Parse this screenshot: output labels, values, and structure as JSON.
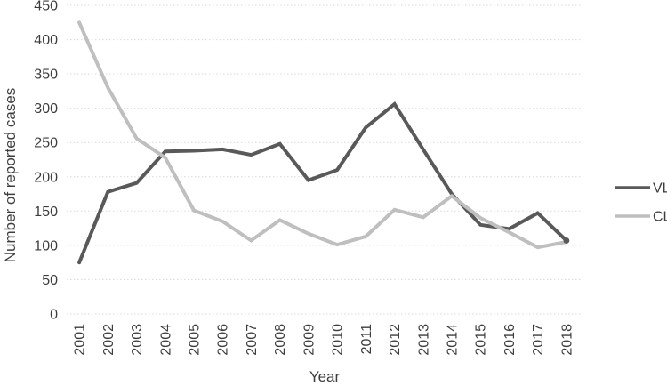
{
  "figure": {
    "background": "#ffffff",
    "text_color": "#3d3d3d",
    "gridline_color": "#d9d9d9"
  },
  "chart_data": {
    "type": "line",
    "title": "",
    "xlabel": "Year",
    "ylabel": "Number of reported cases",
    "ylim": [
      0,
      450
    ],
    "ytick_step": 50,
    "yticks": [
      0,
      50,
      100,
      150,
      200,
      250,
      300,
      350,
      400,
      450
    ],
    "grid": "horizontal dotted",
    "legend_position": "right-middle",
    "categories": [
      "2001",
      "2002",
      "2003",
      "2004",
      "2005",
      "2006",
      "2007",
      "2008",
      "2009",
      "2010",
      "2011",
      "2012",
      "2013",
      "2014",
      "2015",
      "2016",
      "2017",
      "2018"
    ],
    "series": [
      {
        "name": "VL",
        "color": "#595959",
        "end_marker": true,
        "values": [
          75,
          178,
          191,
          237,
          238,
          240,
          232,
          248,
          195,
          210,
          272,
          306,
          240,
          175,
          130,
          124,
          147,
          107
        ]
      },
      {
        "name": "CL",
        "color": "#bfbfbf",
        "end_marker": false,
        "values": [
          425,
          330,
          256,
          228,
          151,
          135,
          107,
          137,
          117,
          101,
          113,
          152,
          141,
          172,
          140,
          119,
          97,
          105
        ]
      }
    ]
  }
}
